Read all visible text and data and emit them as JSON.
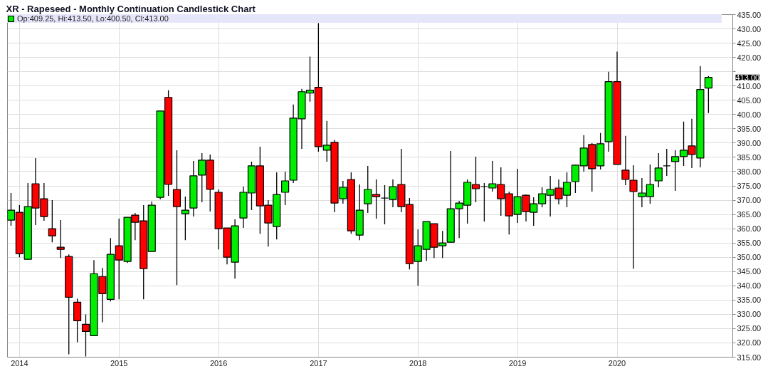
{
  "chart_data": {
    "type": "candlestick",
    "title": "XR - Rapeseed - Monthly Continuation Candlestick Chart",
    "x": [
      "2013-12",
      "2014-01",
      "2014-02",
      "2014-03",
      "2014-04",
      "2014-05",
      "2014-06",
      "2014-07",
      "2014-08",
      "2014-09",
      "2014-10",
      "2014-11",
      "2014-12",
      "2015-01",
      "2015-02",
      "2015-03",
      "2015-04",
      "2015-05",
      "2015-06",
      "2015-07",
      "2015-08",
      "2015-09",
      "2015-10",
      "2015-11",
      "2015-12",
      "2016-01",
      "2016-02",
      "2016-03",
      "2016-04",
      "2016-05",
      "2016-06",
      "2016-07",
      "2016-08",
      "2016-09",
      "2016-10",
      "2016-11",
      "2016-12",
      "2017-01",
      "2017-02",
      "2017-03",
      "2017-04",
      "2017-05",
      "2017-06",
      "2017-07",
      "2017-08",
      "2017-09",
      "2017-10",
      "2017-11",
      "2017-12",
      "2018-01",
      "2018-02",
      "2018-03",
      "2018-04",
      "2018-05",
      "2018-06",
      "2018-07",
      "2018-08",
      "2018-09",
      "2018-10",
      "2018-11",
      "2018-12",
      "2019-01",
      "2019-02",
      "2019-03",
      "2019-04",
      "2019-05",
      "2019-06",
      "2019-07",
      "2019-08",
      "2019-09",
      "2019-10",
      "2019-11",
      "2019-12",
      "2020-01",
      "2020-02",
      "2020-03",
      "2020-04",
      "2020-05",
      "2020-06",
      "2020-07",
      "2020-08",
      "2020-09",
      "2020-10",
      "2020-11",
      "2020-12"
    ],
    "series": [
      {
        "name": "Op:409.25, Hi:413.50, Lo:400.50, Cl:413.00",
        "ohlc": [
          [
            363,
            372.5,
            361,
            366.5
          ],
          [
            365.75,
            368.25,
            350,
            351.25
          ],
          [
            349.25,
            376,
            349.25,
            367.75
          ],
          [
            375.75,
            384.75,
            361.25,
            367.25
          ],
          [
            370.5,
            376,
            362.75,
            364.25
          ],
          [
            360,
            370,
            355.25,
            357.5
          ],
          [
            353.5,
            363,
            349.75,
            352.75
          ],
          [
            350.25,
            351,
            316,
            336
          ],
          [
            334.25,
            335.5,
            320.25,
            327.75
          ],
          [
            326.5,
            330,
            315.25,
            324
          ],
          [
            322.5,
            349,
            322.5,
            344.25
          ],
          [
            343.25,
            346.25,
            327.25,
            337.25
          ],
          [
            335.25,
            356.75,
            334.5,
            351
          ],
          [
            354,
            363.5,
            335.25,
            349
          ],
          [
            348.5,
            364,
            348,
            364
          ],
          [
            364.75,
            365.5,
            356,
            362.25
          ],
          [
            362.75,
            368.25,
            335.25,
            346
          ],
          [
            352,
            369.5,
            352,
            368.25
          ],
          [
            371,
            401.25,
            370.25,
            401.25
          ],
          [
            406,
            408.5,
            371.5,
            375.5
          ],
          [
            373.75,
            387.5,
            340.25,
            367.75
          ],
          [
            365.25,
            371.25,
            356,
            366.5
          ],
          [
            367.25,
            383.75,
            364.25,
            378.5
          ],
          [
            378.75,
            386.5,
            369.25,
            384
          ],
          [
            384,
            386,
            366,
            373.75
          ],
          [
            372.75,
            373.75,
            352.75,
            360
          ],
          [
            360.25,
            360.25,
            347.5,
            350
          ],
          [
            348.25,
            363.25,
            342.5,
            361
          ],
          [
            363.75,
            374.75,
            360.25,
            372.75
          ],
          [
            372.5,
            383.5,
            366.5,
            382
          ],
          [
            382,
            388.75,
            358.25,
            368
          ],
          [
            368.25,
            370,
            353.75,
            362
          ],
          [
            360.75,
            379.75,
            356.25,
            372
          ],
          [
            372.75,
            380,
            368.25,
            376.75
          ],
          [
            377,
            403.5,
            376,
            398.75
          ],
          [
            398.5,
            409,
            388,
            408
          ],
          [
            407.5,
            420.25,
            404.5,
            408.5
          ],
          [
            409.5,
            432,
            387,
            388.75
          ],
          [
            387.5,
            397.75,
            383.5,
            389.25
          ],
          [
            390.25,
            391,
            365.75,
            369
          ],
          [
            370.5,
            376.75,
            368.75,
            374.5
          ],
          [
            377.25,
            379.75,
            358.25,
            359.25
          ],
          [
            357.75,
            375.5,
            356,
            366.5
          ],
          [
            368.75,
            382,
            365.5,
            373.75
          ],
          [
            372,
            377.25,
            363.5,
            371.25
          ],
          [
            370.75,
            375.25,
            361.5,
            370.75
          ],
          [
            370.25,
            377.25,
            367.5,
            374.75
          ],
          [
            375.5,
            388,
            365.75,
            367.75
          ],
          [
            368.5,
            370.75,
            345.75,
            347.75
          ],
          [
            348.5,
            359.75,
            340,
            354
          ],
          [
            352.75,
            362.5,
            348.75,
            362.5
          ],
          [
            361.75,
            361.75,
            349.75,
            353.5
          ],
          [
            354,
            359.25,
            349.75,
            355
          ],
          [
            355.25,
            387.25,
            355.25,
            367
          ],
          [
            367,
            369.75,
            356.75,
            369
          ],
          [
            368.25,
            377.25,
            361.75,
            376.25
          ],
          [
            375.5,
            385.25,
            369.25,
            374
          ],
          [
            374.75,
            376,
            362.5,
            374.75
          ],
          [
            374.25,
            383.75,
            373,
            375.75
          ],
          [
            375.5,
            381.5,
            364.5,
            370.5
          ],
          [
            372.25,
            373,
            358,
            364.5
          ],
          [
            365,
            381,
            362,
            371.25
          ],
          [
            371.75,
            372,
            362.5,
            366
          ],
          [
            365.75,
            371,
            361,
            368.75
          ],
          [
            368.75,
            374.5,
            367.5,
            372.25
          ],
          [
            371.75,
            378.5,
            364.25,
            373.75
          ],
          [
            374.25,
            377.25,
            368.5,
            370.5
          ],
          [
            371.75,
            379.75,
            367.5,
            376.25
          ],
          [
            376.5,
            382.5,
            372.5,
            382.25
          ],
          [
            382,
            392.75,
            380,
            388.25
          ],
          [
            389.5,
            390,
            373,
            381
          ],
          [
            382,
            393.5,
            380.75,
            389.75
          ],
          [
            390.5,
            415,
            387,
            411.5
          ],
          [
            411.5,
            422,
            382.5,
            382.5
          ],
          [
            380.5,
            392.5,
            375.25,
            377.25
          ],
          [
            377,
            382.25,
            346,
            373
          ],
          [
            371.25,
            377.75,
            367.5,
            372.5
          ],
          [
            371.25,
            382.5,
            368.75,
            375.5
          ],
          [
            376.75,
            386.5,
            374.5,
            381.25
          ],
          [
            382,
            388,
            378.5,
            382
          ],
          [
            383.5,
            387.5,
            373.25,
            385.25
          ],
          [
            385.25,
            397.5,
            382,
            387.5
          ],
          [
            389,
            398.5,
            381.25,
            386
          ],
          [
            384.75,
            417,
            381.5,
            408.75
          ],
          [
            409.25,
            413.5,
            400.5,
            413
          ]
        ],
        "colors": [
          "#00ee00",
          "#ff0000",
          "#00ee00",
          "#ff0000",
          "#ff0000",
          "#ff0000",
          "#ff0000",
          "#ff0000",
          "#ff0000",
          "#ff0000",
          "#00ee00",
          "#ff0000",
          "#00ee00",
          "#ff0000",
          "#00ee00",
          "#ff0000",
          "#ff0000",
          "#00ee00",
          "#00ee00",
          "#ff0000",
          "#ff0000",
          "#00ee00",
          "#00ee00",
          "#00ee00",
          "#ff0000",
          "#ff0000",
          "#ff0000",
          "#00ee00",
          "#00ee00",
          "#00ee00",
          "#ff0000",
          "#ff0000",
          "#00ee00",
          "#00ee00",
          "#00ee00",
          "#00ee00",
          "#00ee00",
          "#ff0000",
          "#00ee00",
          "#ff0000",
          "#00ee00",
          "#ff0000",
          "#00ee00",
          "#00ee00",
          "#ff0000",
          "#000000",
          "#00ee00",
          "#ff0000",
          "#ff0000",
          "#00ee00",
          "#00ee00",
          "#ff0000",
          "#00ee00",
          "#00ee00",
          "#00ee00",
          "#00ee00",
          "#ff0000",
          "#000000",
          "#00ee00",
          "#ff0000",
          "#ff0000",
          "#00ee00",
          "#ff0000",
          "#00ee00",
          "#00ee00",
          "#00ee00",
          "#ff0000",
          "#00ee00",
          "#00ee00",
          "#00ee00",
          "#ff0000",
          "#00ee00",
          "#00ee00",
          "#ff0000",
          "#ff0000",
          "#ff0000",
          "#00ee00",
          "#00ee00",
          "#00ee00",
          "#000000",
          "#00ee00",
          "#00ee00",
          "#ff0000",
          "#00ee00",
          "#00ee00"
        ]
      }
    ],
    "xlim": [
      "2013-11-18",
      "2021-02-28"
    ],
    "xticks": [
      "2014",
      "2015",
      "2016",
      "2017",
      "2018",
      "2019",
      "2020"
    ],
    "ylim": [
      315,
      435
    ],
    "yticks": [
      {
        "value": 315,
        "label": "315.00"
      },
      {
        "value": 320,
        "label": "320.00"
      },
      {
        "value": 325,
        "label": "325.00"
      },
      {
        "value": 330,
        "label": "330.00"
      },
      {
        "value": 335,
        "label": "335.00"
      },
      {
        "value": 340,
        "label": "340.00"
      },
      {
        "value": 345,
        "label": "345.00"
      },
      {
        "value": 350,
        "label": "350.00"
      },
      {
        "value": 355,
        "label": "355.00"
      },
      {
        "value": 360,
        "label": "360.00"
      },
      {
        "value": 365,
        "label": "365.00"
      },
      {
        "value": 370,
        "label": "370.00"
      },
      {
        "value": 375,
        "label": "375.00"
      },
      {
        "value": 380,
        "label": "380.00"
      },
      {
        "value": 385,
        "label": "385.00"
      },
      {
        "value": 390,
        "label": "390.00"
      },
      {
        "value": 395,
        "label": "395.00"
      },
      {
        "value": 400,
        "label": "400.00"
      },
      {
        "value": 405,
        "label": "405.00"
      },
      {
        "value": 410,
        "label": "410.00"
      },
      {
        "value": 415,
        "label": null
      },
      {
        "value": 420,
        "label": "420.00"
      },
      {
        "value": 425,
        "label": "425.00"
      },
      {
        "value": 430,
        "label": "430.00"
      },
      {
        "value": 435,
        "label": "435.00"
      }
    ],
    "grid": true,
    "legend": "top left",
    "annotations": [
      "413.00"
    ]
  }
}
